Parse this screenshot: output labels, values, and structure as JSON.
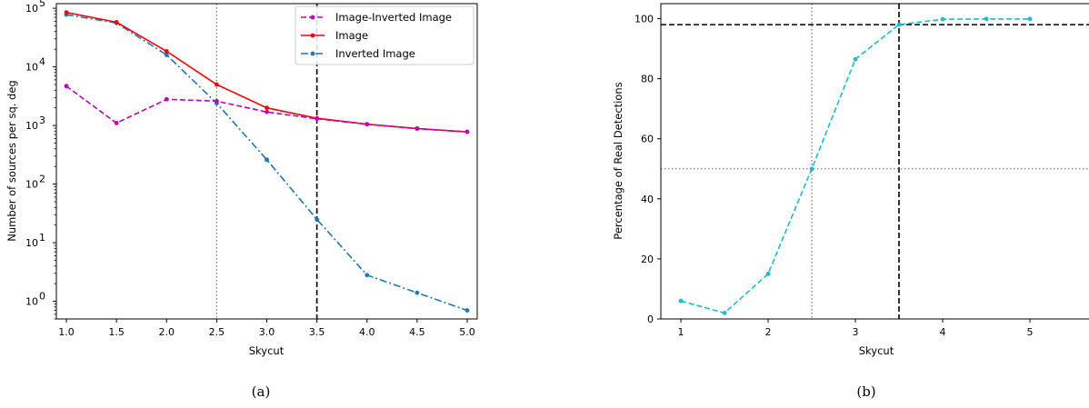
{
  "chart_data": [
    {
      "type": "line",
      "caption": "(a)",
      "xlabel": "Skycut",
      "ylabel": "Number of sources per sq. deg",
      "xlim": [
        0.9,
        5.1
      ],
      "ylim": [
        0.5,
        120000
      ],
      "yscale": "log",
      "grid": false,
      "legend_position": "top-right",
      "xticks": [
        "1.0",
        "1.5",
        "2.0",
        "2.5",
        "3.0",
        "3.5",
        "4.0",
        "4.5",
        "5.0"
      ],
      "ytick_exponents": [
        "0",
        "1",
        "2",
        "3",
        "4",
        "5"
      ],
      "ytick_base": "10",
      "x": [
        1.0,
        1.5,
        2.0,
        2.5,
        3.0,
        3.5,
        4.0,
        4.5,
        5.0
      ],
      "series": [
        {
          "name": "Image-Inverted Image",
          "color": "#bf00bf",
          "style": "dashed",
          "values": [
            4700,
            1100,
            2800,
            2600,
            1700,
            1300,
            1050,
            880,
            780
          ]
        },
        {
          "name": "Image",
          "color": "#ff0000",
          "style": "solid",
          "values": [
            85000,
            58000,
            18500,
            5000,
            2000,
            1330,
            1050,
            890,
            780
          ]
        },
        {
          "name": "Inverted Image",
          "color": "#1f77b4",
          "style": "dashdot",
          "values": [
            78000,
            56000,
            16000,
            2400,
            260,
            25,
            2.8,
            1.4,
            0.7
          ]
        }
      ],
      "vlines": [
        {
          "x": 2.5,
          "style": "dotted",
          "color": "#808080"
        },
        {
          "x": 3.5,
          "style": "dashed",
          "color": "#000000"
        }
      ]
    },
    {
      "type": "line",
      "caption": "(b)",
      "xlabel": "Skycut",
      "ylabel": "Percentage of Real Detections",
      "xlim": [
        0.6,
        5.7
      ],
      "ylim": [
        0,
        105
      ],
      "grid": false,
      "xticks": [
        "1",
        "2",
        "3",
        "4",
        "5"
      ],
      "yticks": [
        "0",
        "20",
        "40",
        "60",
        "80",
        "100"
      ],
      "x": [
        1.0,
        1.5,
        2.0,
        2.5,
        3.0,
        3.5,
        4.0,
        4.5,
        5.0
      ],
      "series": [
        {
          "color": "#17becf",
          "style": "dashed",
          "values": [
            6,
            2,
            15,
            50,
            86.5,
            98,
            99.8,
            99.9,
            99.9
          ]
        }
      ],
      "vlines": [
        {
          "x": 2.5,
          "style": "dotted",
          "color": "#808080"
        },
        {
          "x": 3.5,
          "style": "dashed",
          "color": "#000000"
        }
      ],
      "hlines": [
        {
          "y": 50,
          "style": "dotted",
          "color": "#808080"
        },
        {
          "y": 98,
          "style": "dashed",
          "color": "#000000"
        }
      ]
    }
  ]
}
